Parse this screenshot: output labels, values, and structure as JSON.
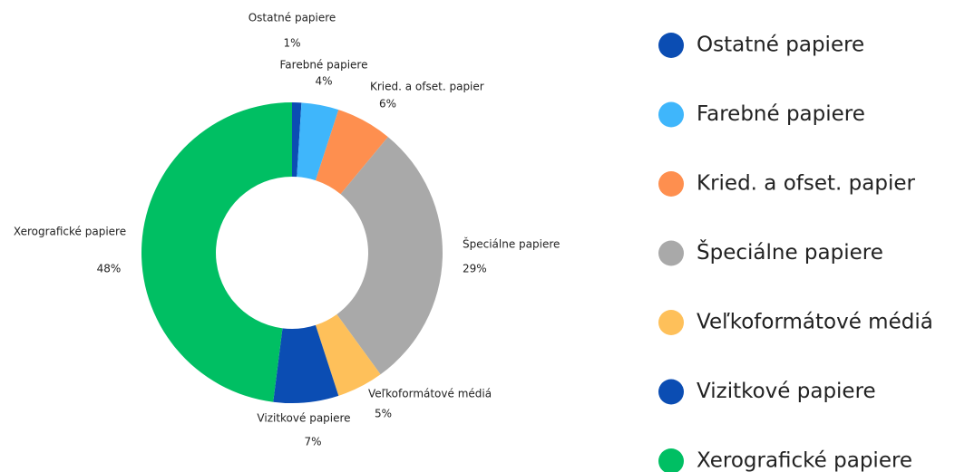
{
  "chart_data": {
    "type": "donut",
    "categories": [
      "Ostatné papiere",
      "Farebné papiere",
      "Kried. a ofset. papier",
      "Špeciálne papiere",
      "Veľkoformátové médiá",
      "Vizitkové papiere",
      "Xerografické papiere"
    ],
    "values": [
      1,
      4,
      6,
      29,
      5,
      7,
      48
    ],
    "value_labels": [
      "1%",
      "4%",
      "6%",
      "29%",
      "5%",
      "7%",
      "48%"
    ],
    "colors": [
      "#0b4db3",
      "#3fb6fb",
      "#fe8f4f",
      "#a9a9a9",
      "#fec05a",
      "#0b4db3",
      "#00bf63"
    ],
    "legend": "right"
  }
}
